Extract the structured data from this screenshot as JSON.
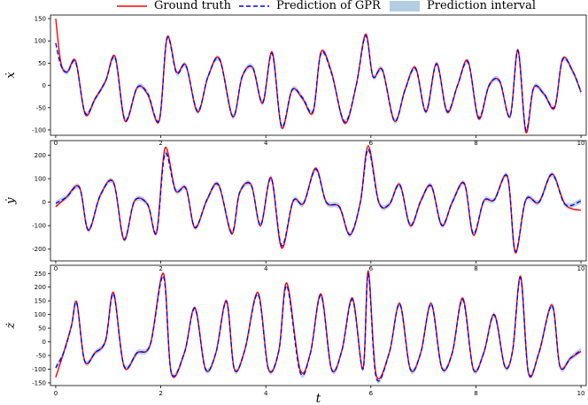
{
  "legend": {
    "items": [
      {
        "label": "Ground truth",
        "color": "#ff0000",
        "style": "solid"
      },
      {
        "label": "Prediction of GPR",
        "color": "#0000ff",
        "style": "dashed"
      },
      {
        "label": "Prediction interval",
        "color": "#b3cde3",
        "style": "band"
      }
    ],
    "placement": "top-center"
  },
  "chart_data": [
    {
      "type": "line",
      "ylabel": "ẋ",
      "xlabel": "",
      "xlim": [
        -0.1,
        10.1
      ],
      "ylim": [
        -112,
        158
      ],
      "xticks": [
        0,
        2,
        4,
        6,
        8,
        10
      ],
      "yticks": [
        -100,
        -50,
        0,
        50,
        100,
        150
      ],
      "series": [
        {
          "name": "Ground truth",
          "color": "#ff0000",
          "x": [
            0,
            0.1,
            0.22,
            0.38,
            0.56,
            0.75,
            0.95,
            1.13,
            1.32,
            1.55,
            1.75,
            1.97,
            2.12,
            2.3,
            2.48,
            2.7,
            2.9,
            3.12,
            3.37,
            3.55,
            3.75,
            3.94,
            4.12,
            4.3,
            4.5,
            4.7,
            4.9,
            5.05,
            5.25,
            5.5,
            5.72,
            5.9,
            6.04,
            6.22,
            6.45,
            6.65,
            6.85,
            7.05,
            7.25,
            7.45,
            7.65,
            7.85,
            8.05,
            8.25,
            8.45,
            8.65,
            8.8,
            8.95,
            9.1,
            9.3,
            9.5,
            9.65,
            9.85,
            10.0
          ],
          "y": [
            150,
            50,
            30,
            55,
            -65,
            -30,
            10,
            65,
            -80,
            -5,
            -20,
            -80,
            108,
            30,
            45,
            -60,
            20,
            60,
            -70,
            20,
            40,
            -40,
            75,
            -95,
            -10,
            -30,
            -60,
            75,
            30,
            -85,
            0,
            115,
            20,
            35,
            -80,
            -10,
            40,
            -60,
            50,
            -60,
            0,
            55,
            -75,
            0,
            10,
            -70,
            80,
            -105,
            -5,
            -20,
            -50,
            60,
            30,
            -15
          ]
        },
        {
          "name": "Prediction of GPR",
          "color": "#0000ff",
          "x": [
            0,
            0.1,
            0.22,
            0.38,
            0.56,
            0.75,
            0.95,
            1.13,
            1.32,
            1.55,
            1.75,
            1.97,
            2.12,
            2.3,
            2.48,
            2.7,
            2.9,
            3.12,
            3.37,
            3.55,
            3.75,
            3.94,
            4.12,
            4.3,
            4.5,
            4.7,
            4.9,
            5.05,
            5.25,
            5.5,
            5.72,
            5.9,
            6.04,
            6.22,
            6.45,
            6.65,
            6.85,
            7.05,
            7.25,
            7.45,
            7.65,
            7.85,
            8.05,
            8.25,
            8.45,
            8.65,
            8.8,
            8.95,
            9.1,
            9.3,
            9.5,
            9.65,
            9.85,
            10.0
          ],
          "y": [
            95,
            45,
            30,
            52,
            -62,
            -30,
            10,
            62,
            -78,
            -5,
            -18,
            -78,
            106,
            28,
            44,
            -58,
            20,
            58,
            -70,
            20,
            40,
            -38,
            72,
            -92,
            -10,
            -28,
            -58,
            72,
            28,
            -82,
            0,
            112,
            20,
            34,
            -80,
            -10,
            38,
            -58,
            48,
            -58,
            0,
            52,
            -72,
            0,
            10,
            -70,
            78,
            -100,
            -5,
            -20,
            -48,
            58,
            30,
            -15
          ]
        }
      ]
    },
    {
      "type": "line",
      "ylabel": "ẏ",
      "xlabel": "",
      "xlim": [
        -0.1,
        10.1
      ],
      "ylim": [
        -250,
        262
      ],
      "xticks": [
        0,
        2,
        4,
        6,
        8,
        10
      ],
      "yticks": [
        -200,
        -100,
        0,
        100,
        200
      ],
      "series": [
        {
          "name": "Ground truth",
          "color": "#ff0000",
          "x": [
            0,
            0.2,
            0.45,
            0.62,
            0.85,
            1.1,
            1.3,
            1.5,
            1.75,
            1.92,
            2.08,
            2.28,
            2.48,
            2.65,
            2.88,
            3.1,
            3.35,
            3.5,
            3.72,
            3.9,
            4.1,
            4.3,
            4.52,
            4.72,
            4.95,
            5.15,
            5.4,
            5.6,
            5.8,
            5.95,
            6.15,
            6.35,
            6.55,
            6.75,
            6.95,
            7.15,
            7.35,
            7.55,
            7.78,
            7.95,
            8.15,
            8.35,
            8.6,
            8.75,
            8.95,
            9.2,
            9.45,
            9.7,
            10.0
          ],
          "y": [
            -20,
            20,
            65,
            -120,
            30,
            85,
            -160,
            5,
            -10,
            -130,
            230,
            50,
            60,
            -110,
            10,
            75,
            -135,
            40,
            75,
            -100,
            105,
            -195,
            5,
            -5,
            145,
            0,
            -20,
            -140,
            0,
            240,
            0,
            -10,
            75,
            -100,
            5,
            70,
            -100,
            0,
            80,
            -140,
            5,
            10,
            110,
            -215,
            10,
            0,
            120,
            -10,
            -35
          ]
        },
        {
          "name": "Prediction of GPR",
          "color": "#0000ff",
          "x": [
            0,
            0.2,
            0.45,
            0.62,
            0.85,
            1.1,
            1.3,
            1.5,
            1.75,
            1.92,
            2.08,
            2.28,
            2.48,
            2.65,
            2.88,
            3.1,
            3.35,
            3.5,
            3.72,
            3.9,
            4.1,
            4.3,
            4.52,
            4.72,
            4.95,
            5.15,
            5.4,
            5.6,
            5.8,
            5.95,
            6.15,
            6.35,
            6.55,
            6.75,
            6.95,
            7.15,
            7.35,
            7.55,
            7.78,
            7.95,
            8.15,
            8.35,
            8.6,
            8.75,
            8.95,
            9.2,
            9.45,
            9.7,
            10.0
          ],
          "y": [
            -5,
            20,
            63,
            -118,
            30,
            83,
            -158,
            5,
            -10,
            -128,
            205,
            50,
            58,
            -108,
            10,
            73,
            -130,
            40,
            73,
            -98,
            102,
            -185,
            5,
            -5,
            140,
            0,
            -20,
            -138,
            0,
            225,
            0,
            -10,
            73,
            -98,
            5,
            68,
            -98,
            0,
            78,
            -135,
            5,
            10,
            108,
            -210,
            10,
            0,
            118,
            -10,
            5
          ]
        }
      ]
    },
    {
      "type": "line",
      "ylabel": "ż",
      "xlabel": "t",
      "xlim": [
        -0.1,
        10.1
      ],
      "ylim": [
        -160,
        280
      ],
      "xticks": [
        0,
        2,
        4,
        6,
        8,
        10
      ],
      "yticks": [
        -150,
        -100,
        -50,
        0,
        50,
        100,
        150,
        200,
        250
      ],
      "series": [
        {
          "name": "Ground truth",
          "color": "#ff0000",
          "x": [
            0,
            0.15,
            0.3,
            0.4,
            0.55,
            0.75,
            0.95,
            1.1,
            1.3,
            1.55,
            1.8,
            2.05,
            2.2,
            2.45,
            2.65,
            2.85,
            3.05,
            3.25,
            3.4,
            3.6,
            3.85,
            4.05,
            4.25,
            4.4,
            4.65,
            4.85,
            5.05,
            5.25,
            5.45,
            5.65,
            5.85,
            5.95,
            6.1,
            6.35,
            6.55,
            6.75,
            6.95,
            7.15,
            7.35,
            7.55,
            7.75,
            7.95,
            8.15,
            8.35,
            8.55,
            8.7,
            8.85,
            9.0,
            9.2,
            9.45,
            9.6,
            9.8,
            10.0
          ],
          "y": [
            -130,
            -40,
            60,
            145,
            -70,
            -40,
            5,
            180,
            -90,
            -40,
            -10,
            250,
            -115,
            -40,
            125,
            -100,
            -40,
            150,
            -100,
            -30,
            180,
            -100,
            -30,
            215,
            -100,
            -40,
            175,
            -100,
            -30,
            160,
            -100,
            260,
            -120,
            -40,
            140,
            -100,
            -40,
            140,
            -95,
            -40,
            160,
            -100,
            -40,
            100,
            -90,
            -30,
            240,
            -115,
            -40,
            135,
            -90,
            -60,
            -35
          ]
        },
        {
          "name": "Prediction of GPR",
          "color": "#0000ff",
          "x": [
            0,
            0.15,
            0.3,
            0.4,
            0.55,
            0.75,
            0.95,
            1.1,
            1.3,
            1.55,
            1.8,
            2.05,
            2.2,
            2.45,
            2.65,
            2.85,
            3.05,
            3.25,
            3.4,
            3.6,
            3.85,
            4.05,
            4.25,
            4.4,
            4.65,
            4.85,
            5.05,
            5.25,
            5.45,
            5.65,
            5.85,
            5.95,
            6.1,
            6.35,
            6.55,
            6.75,
            6.95,
            7.15,
            7.35,
            7.55,
            7.75,
            7.95,
            8.15,
            8.35,
            8.55,
            8.7,
            8.85,
            9.0,
            9.2,
            9.45,
            9.6,
            9.8,
            10.0
          ],
          "y": [
            -95,
            -40,
            58,
            142,
            -70,
            -40,
            5,
            175,
            -88,
            -40,
            -10,
            240,
            -112,
            -40,
            122,
            -100,
            -40,
            148,
            -100,
            -30,
            175,
            -100,
            -30,
            205,
            -110,
            -40,
            170,
            -100,
            -30,
            155,
            -100,
            250,
            -130,
            -40,
            138,
            -100,
            -40,
            138,
            -95,
            -40,
            155,
            -100,
            -40,
            98,
            -90,
            -30,
            235,
            -112,
            -40,
            132,
            -90,
            -60,
            -30
          ]
        }
      ]
    }
  ]
}
